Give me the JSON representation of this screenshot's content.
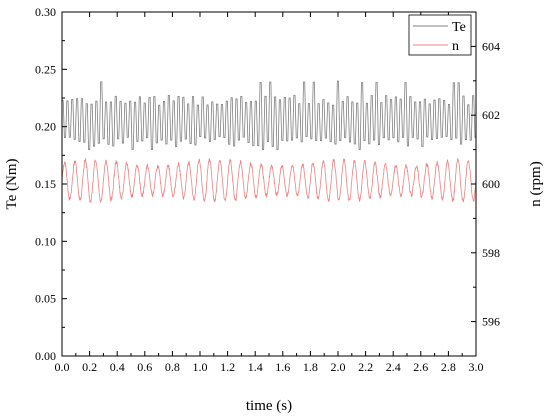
{
  "chart_data": {
    "type": "line",
    "title": "",
    "xlabel": "time (s)",
    "ylabel_left": "Te (Nm)",
    "ylabel_right": "n (rpm)",
    "xlim": [
      0,
      3.0
    ],
    "ylim_left": [
      0,
      0.3
    ],
    "ylim_right": [
      595,
      605
    ],
    "x_ticks": [
      "0.0",
      "0.2",
      "0.4",
      "0.6",
      "0.8",
      "1.0",
      "1.2",
      "1.4",
      "1.6",
      "1.8",
      "2.0",
      "2.2",
      "2.4",
      "2.6",
      "2.8",
      "3.0"
    ],
    "y_ticks_left": [
      "0.00",
      "0.05",
      "0.10",
      "0.15",
      "0.20",
      "0.25",
      "0.30"
    ],
    "y_ticks_right": [
      "596",
      "598",
      "600",
      "602",
      "604"
    ],
    "grid": false,
    "legend_position": "top-right",
    "series": [
      {
        "name": "Te",
        "axis": "left",
        "color": "#808080",
        "mean": 0.205,
        "amplitude": 0.018,
        "period": 0.035,
        "range": [
          0.18,
          0.24
        ]
      },
      {
        "name": "n",
        "axis": "right",
        "color": "#f08080",
        "mean": 600.1,
        "amplitude": 0.6,
        "period": 0.075,
        "range": [
          599.3,
          600.9
        ]
      }
    ]
  }
}
